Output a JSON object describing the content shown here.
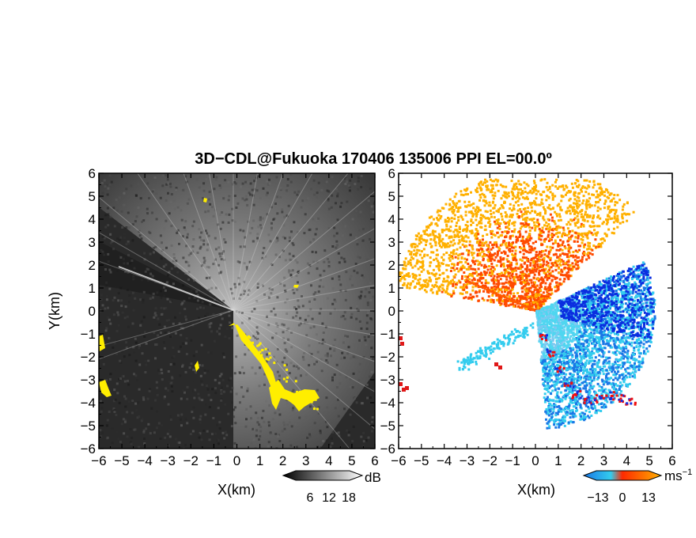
{
  "chart_data": {
    "title": "3D−CDL@Fukuoka 170406 135006 PPI EL=00.0º",
    "panels": [
      {
        "name": "left",
        "type": "heatmap",
        "xlabel": "X(km)",
        "ylabel": "Y(km)",
        "xlim": [
          -6,
          6
        ],
        "ylim": [
          -6,
          6
        ],
        "ticks": [
          -6,
          -5,
          -4,
          -3,
          -2,
          -1,
          0,
          1,
          2,
          3,
          4,
          5,
          6
        ],
        "colorbar": {
          "unit": "dB",
          "ticks": [
            "6",
            "12",
            "18"
          ],
          "colors": [
            "#000000",
            "#ffffff"
          ]
        },
        "highlight_color": "#ffee00",
        "background_color": "#2a2a2a"
      },
      {
        "name": "right",
        "type": "heatmap",
        "xlabel": "X(km)",
        "ylabel": "",
        "xlim": [
          -6,
          6
        ],
        "ylim": [
          -6,
          6
        ],
        "ticks": [
          -6,
          -5,
          -4,
          -3,
          -2,
          -1,
          0,
          1,
          2,
          3,
          4,
          5,
          6
        ],
        "colorbar": {
          "unit": "ms",
          "unit_exponent": "−1",
          "ticks": [
            "−13",
            "0",
            "13"
          ],
          "colors": [
            "#1a78e6",
            "#33ccee",
            "#ff5a00",
            "#ffb000"
          ]
        },
        "background_color": "#ffffff"
      }
    ]
  }
}
